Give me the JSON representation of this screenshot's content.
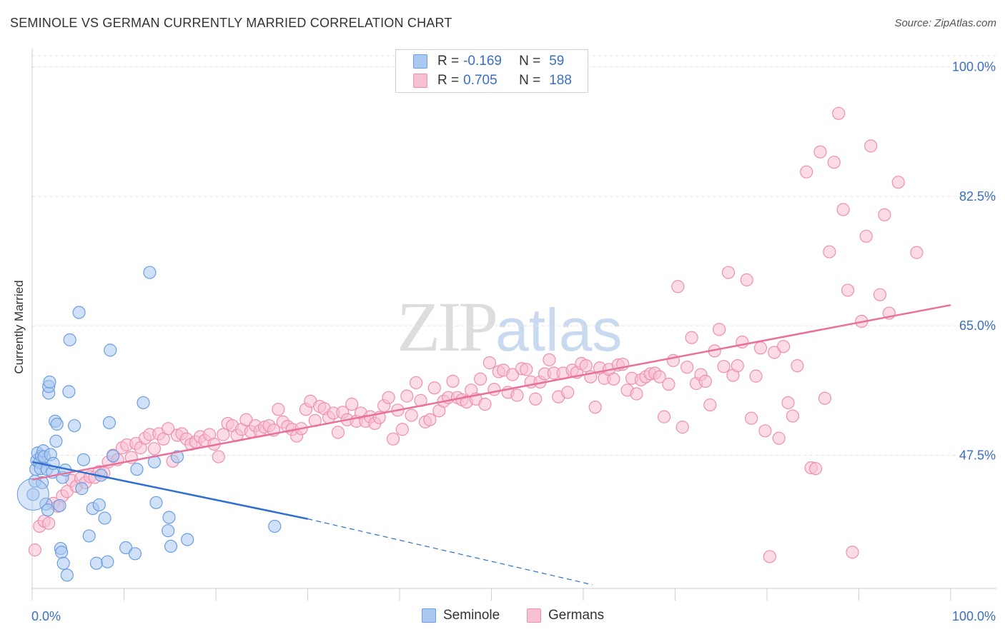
{
  "title": "SEMINOLE VS GERMAN CURRENTLY MARRIED CORRELATION CHART",
  "source": "Source: ZipAtlas.com",
  "watermark": {
    "zip": "ZIP",
    "atlas": "atlas"
  },
  "legend": {
    "rows": [
      {
        "r_label": "R =",
        "r_value": "-0.169",
        "n_label": "N =",
        "n_value": "59"
      },
      {
        "r_label": "R =",
        "r_value": "0.705",
        "n_label": "N =",
        "n_value": "188"
      }
    ]
  },
  "bottom_legend": {
    "seminole": "Seminole",
    "germans": "Germans"
  },
  "colors": {
    "seminole_fill": "#aac8f0",
    "seminole_stroke": "#6a9ee0",
    "seminole_line": "#2e6fd0",
    "germans_fill": "#f7bfd2",
    "germans_stroke": "#ee8fb0",
    "germans_line": "#e8709a",
    "tick_label": "#3a6fc4",
    "grid": "#e2e2e2"
  },
  "chart_data": {
    "type": "scatter",
    "title": "SEMINOLE VS GERMAN CURRENTLY MARRIED CORRELATION CHART",
    "xlabel": "",
    "ylabel": "Currently Married",
    "xlim": [
      0,
      100
    ],
    "ylim": [
      29.5,
      101.5
    ],
    "x_tick_labels": [
      "0.0%",
      "100.0%"
    ],
    "y_ticks": [
      47.5,
      65.0,
      82.5,
      100.0
    ],
    "y_tick_labels": [
      "47.5%",
      "65.0%",
      "82.5%",
      "100.0%"
    ],
    "grid": true,
    "series": [
      {
        "name": "Seminole",
        "r": -0.169,
        "n": 59,
        "trend": {
          "x0": 0,
          "y0": 46.6,
          "x1": 30,
          "y1": 38.9,
          "dashed_to_x": 61,
          "dashed_to_y": 30.0
        },
        "points": [
          [
            0.3,
            44
          ],
          [
            0.4,
            45.6
          ],
          [
            0.5,
            46.8
          ],
          [
            0.6,
            47.8
          ],
          [
            0.8,
            46.5
          ],
          [
            0.9,
            45.7
          ],
          [
            1.0,
            47.4
          ],
          [
            1.1,
            43.8
          ],
          [
            1.2,
            48.1
          ],
          [
            1.3,
            47.3
          ],
          [
            1.5,
            40.9
          ],
          [
            1.6,
            45.6
          ],
          [
            1.7,
            40.1
          ],
          [
            1.8,
            55.9
          ],
          [
            1.8,
            56.8
          ],
          [
            1.9,
            57.4
          ],
          [
            2.0,
            47.6
          ],
          [
            2.2,
            45.2
          ],
          [
            2.3,
            46.4
          ],
          [
            2.5,
            52.1
          ],
          [
            2.6,
            49.4
          ],
          [
            2.7,
            51.7
          ],
          [
            3.0,
            40.7
          ],
          [
            3.1,
            34.9
          ],
          [
            3.2,
            34.4
          ],
          [
            3.3,
            44.5
          ],
          [
            3.4,
            32.9
          ],
          [
            3.6,
            45.5
          ],
          [
            3.8,
            31.3
          ],
          [
            4.0,
            56.1
          ],
          [
            4.1,
            63.1
          ],
          [
            4.6,
            51.5
          ],
          [
            5.1,
            66.8
          ],
          [
            5.4,
            43
          ],
          [
            5.6,
            46.9
          ],
          [
            6.2,
            36.6
          ],
          [
            6.6,
            40.3
          ],
          [
            7.0,
            32.9
          ],
          [
            7.3,
            40.8
          ],
          [
            7.5,
            44.8
          ],
          [
            7.9,
            39
          ],
          [
            8.2,
            33.1
          ],
          [
            8.4,
            51.9
          ],
          [
            8.5,
            61.7
          ],
          [
            8.8,
            47.4
          ],
          [
            10.2,
            35
          ],
          [
            11.2,
            34.2
          ],
          [
            11.4,
            45.6
          ],
          [
            12.1,
            54.6
          ],
          [
            12.8,
            72.2
          ],
          [
            13.3,
            46.6
          ],
          [
            13.5,
            41.1
          ],
          [
            14.8,
            37.3
          ],
          [
            14.9,
            39.1
          ],
          [
            15.1,
            35.2
          ],
          [
            15.8,
            47.3
          ],
          [
            16.9,
            36.1
          ],
          [
            26.4,
            37.9
          ],
          [
            0.1,
            42.2
          ]
        ]
      },
      {
        "name": "Germans",
        "r": 0.705,
        "n": 188,
        "trend": {
          "x0": 0,
          "y0": 44.2,
          "x1": 100,
          "y1": 67.8
        },
        "points": [
          [
            0.3,
            34.7
          ],
          [
            0.8,
            37.9
          ],
          [
            1.3,
            38.6
          ],
          [
            1.8,
            38.3
          ],
          [
            2.3,
            41
          ],
          [
            2.8,
            40.6
          ],
          [
            3.3,
            42
          ],
          [
            3.8,
            42.6
          ],
          [
            4.3,
            44.1
          ],
          [
            4.8,
            43.3
          ],
          [
            5.3,
            44.4
          ],
          [
            5.8,
            43.8
          ],
          [
            6.3,
            44.6
          ],
          [
            6.8,
            44.5
          ],
          [
            7.3,
            45.3
          ],
          [
            7.8,
            45.1
          ],
          [
            8.3,
            46.6
          ],
          [
            8.8,
            47.5
          ],
          [
            9.3,
            46.9
          ],
          [
            9.8,
            48.5
          ],
          [
            10.3,
            48.9
          ],
          [
            10.8,
            47.2
          ],
          [
            11.3,
            49.1
          ],
          [
            11.8,
            48.5
          ],
          [
            12.3,
            49.8
          ],
          [
            12.8,
            50.3
          ],
          [
            13.3,
            48.4
          ],
          [
            13.8,
            50.4
          ],
          [
            14.3,
            49.7
          ],
          [
            14.8,
            51.1
          ],
          [
            15.3,
            46.7
          ],
          [
            15.8,
            50.2
          ],
          [
            16.3,
            50.4
          ],
          [
            16.8,
            49.7
          ],
          [
            17.3,
            49
          ],
          [
            17.8,
            49.3
          ],
          [
            18.3,
            50
          ],
          [
            18.8,
            49.5
          ],
          [
            19.3,
            50.3
          ],
          [
            19.8,
            49
          ],
          [
            20.3,
            47.3
          ],
          [
            20.8,
            50.3
          ],
          [
            21.3,
            51.8
          ],
          [
            21.8,
            51.5
          ],
          [
            22.3,
            50.2
          ],
          [
            22.8,
            51
          ],
          [
            23.3,
            52.3
          ],
          [
            23.8,
            50.7
          ],
          [
            24.3,
            51.5
          ],
          [
            24.8,
            50.8
          ],
          [
            25.3,
            51.3
          ],
          [
            25.8,
            51.5
          ],
          [
            26.3,
            50.9
          ],
          [
            26.8,
            53.7
          ],
          [
            27.3,
            52
          ],
          [
            27.8,
            51.4
          ],
          [
            28.3,
            51
          ],
          [
            28.8,
            50.1
          ],
          [
            29.3,
            51.1
          ],
          [
            29.8,
            53.7
          ],
          [
            30.3,
            54.8
          ],
          [
            30.8,
            52.2
          ],
          [
            31.3,
            54.1
          ],
          [
            31.8,
            53.8
          ],
          [
            32.3,
            52.6
          ],
          [
            32.8,
            53.2
          ],
          [
            33.3,
            50.6
          ],
          [
            33.8,
            53.3
          ],
          [
            34.3,
            52.3
          ],
          [
            34.8,
            54.4
          ],
          [
            35.3,
            52.1
          ],
          [
            35.8,
            53.2
          ],
          [
            36.3,
            52.1
          ],
          [
            36.8,
            52.7
          ],
          [
            37.3,
            51.8
          ],
          [
            37.8,
            52.6
          ],
          [
            38.3,
            54.2
          ],
          [
            38.8,
            55.3
          ],
          [
            39.3,
            49.7
          ],
          [
            39.8,
            53.6
          ],
          [
            40.3,
            51
          ],
          [
            40.8,
            55.5
          ],
          [
            41.3,
            52.9
          ],
          [
            41.8,
            57.3
          ],
          [
            42.3,
            54.9
          ],
          [
            42.8,
            52
          ],
          [
            43.3,
            52.3
          ],
          [
            43.8,
            56.6
          ],
          [
            44.3,
            53.5
          ],
          [
            44.8,
            54.8
          ],
          [
            45.3,
            55.3
          ],
          [
            45.8,
            57.5
          ],
          [
            46.3,
            55.3
          ],
          [
            46.8,
            55
          ],
          [
            47.3,
            54.7
          ],
          [
            47.8,
            56.3
          ],
          [
            48.3,
            55.1
          ],
          [
            48.8,
            57.8
          ],
          [
            49.3,
            54.4
          ],
          [
            49.8,
            60
          ],
          [
            50.3,
            56.4
          ],
          [
            50.8,
            58.8
          ],
          [
            51.3,
            59
          ],
          [
            51.8,
            56
          ],
          [
            52.3,
            58.4
          ],
          [
            52.8,
            55.6
          ],
          [
            53.3,
            59.2
          ],
          [
            53.8,
            59.1
          ],
          [
            54.3,
            57.4
          ],
          [
            54.8,
            55.1
          ],
          [
            55.3,
            57.4
          ],
          [
            55.8,
            58.5
          ],
          [
            56.3,
            60.4
          ],
          [
            56.8,
            58.6
          ],
          [
            57.3,
            55.4
          ],
          [
            57.8,
            58.6
          ],
          [
            58.3,
            56
          ],
          [
            58.8,
            59
          ],
          [
            59.3,
            58.7
          ],
          [
            59.8,
            59.9
          ],
          [
            60.3,
            59.6
          ],
          [
            60.8,
            58.1
          ],
          [
            61.3,
            54
          ],
          [
            61.8,
            59.3
          ],
          [
            62.3,
            57.9
          ],
          [
            62.8,
            59.1
          ],
          [
            63.3,
            57.8
          ],
          [
            63.8,
            59.7
          ],
          [
            64.3,
            59.8
          ],
          [
            64.8,
            56.3
          ],
          [
            65.3,
            57.9
          ],
          [
            65.8,
            55.8
          ],
          [
            66.3,
            57.7
          ],
          [
            66.8,
            58.1
          ],
          [
            67.3,
            58.5
          ],
          [
            67.8,
            58.6
          ],
          [
            68.3,
            58.1
          ],
          [
            68.8,
            52.7
          ],
          [
            69.3,
            57.1
          ],
          [
            69.8,
            60.3
          ],
          [
            70.3,
            70.3
          ],
          [
            70.8,
            51.3
          ],
          [
            71.3,
            59.4
          ],
          [
            71.8,
            63.4
          ],
          [
            72.3,
            57.2
          ],
          [
            72.8,
            58.4
          ],
          [
            73.3,
            57.5
          ],
          [
            73.8,
            54.3
          ],
          [
            74.3,
            61.6
          ],
          [
            74.8,
            64.5
          ],
          [
            75.3,
            59.5
          ],
          [
            75.8,
            72.2
          ],
          [
            76.3,
            58.3
          ],
          [
            76.8,
            59.6
          ],
          [
            77.3,
            62.8
          ],
          [
            77.8,
            71.2
          ],
          [
            78.3,
            52.5
          ],
          [
            78.8,
            58.2
          ],
          [
            79.3,
            62
          ],
          [
            79.8,
            50.8
          ],
          [
            80.3,
            33.8
          ],
          [
            80.8,
            61.4
          ],
          [
            81.3,
            49.8
          ],
          [
            81.8,
            62.2
          ],
          [
            82.3,
            54.6
          ],
          [
            82.8,
            52.8
          ],
          [
            83.3,
            59.6
          ],
          [
            84.3,
            85.8
          ],
          [
            84.8,
            45.8
          ],
          [
            85.3,
            45.7
          ],
          [
            85.8,
            88.5
          ],
          [
            86.3,
            55.2
          ],
          [
            86.8,
            75
          ],
          [
            87.3,
            87.1
          ],
          [
            87.8,
            93.7
          ],
          [
            88.3,
            80.7
          ],
          [
            88.8,
            69.8
          ],
          [
            89.3,
            34.4
          ],
          [
            90.3,
            65.6
          ],
          [
            90.8,
            77.1
          ],
          [
            91.3,
            89.3
          ],
          [
            92.3,
            69.2
          ],
          [
            92.8,
            80
          ],
          [
            93.3,
            66.7
          ],
          [
            94.3,
            84.4
          ],
          [
            96.3,
            74.9
          ]
        ]
      }
    ]
  }
}
